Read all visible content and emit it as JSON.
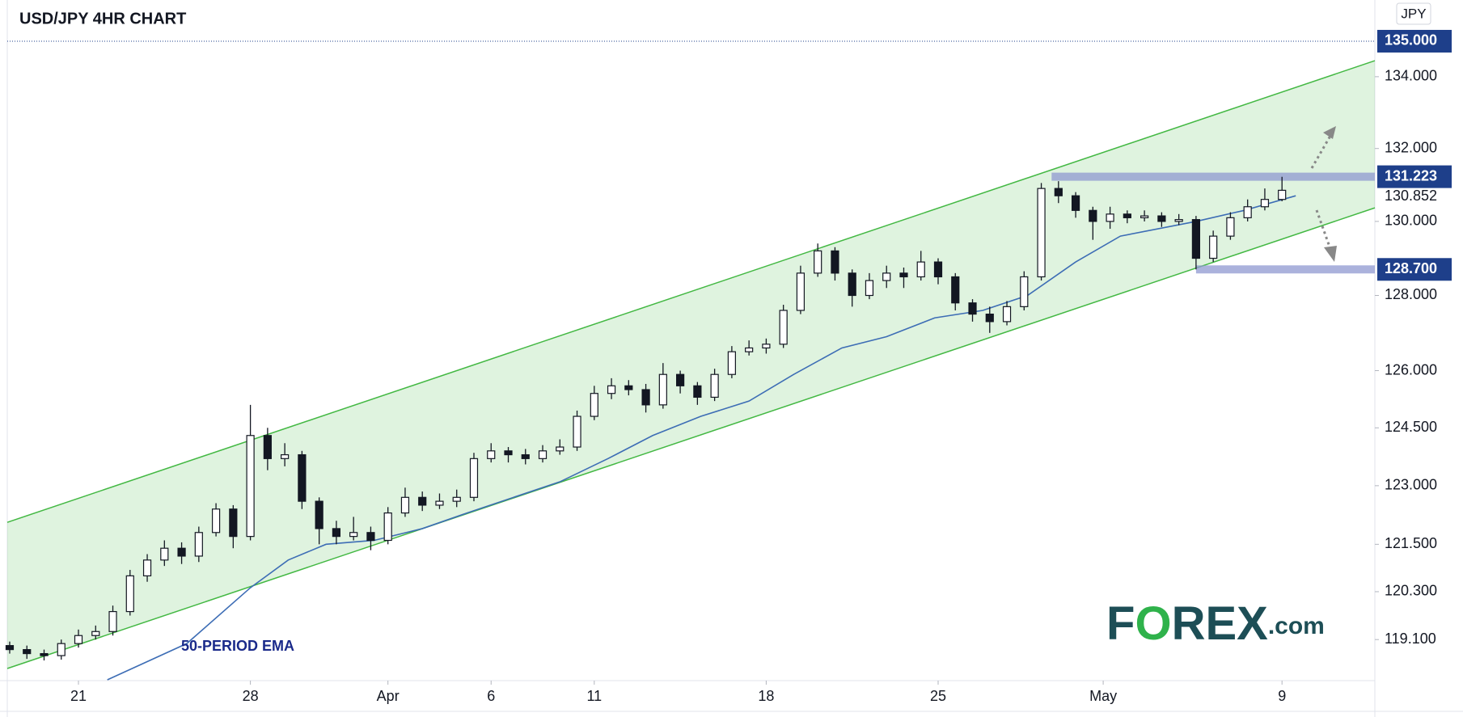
{
  "chart_data": {
    "type": "candlestick",
    "title": "USD/JPY 4HR CHART",
    "currency": "JPY",
    "x": [
      -2,
      -1.5,
      -1,
      -0.5,
      0,
      0.5,
      1,
      1.5,
      2,
      2.5,
      3,
      3.5,
      4,
      4.5,
      5,
      5.5,
      6,
      6.5,
      7,
      7.5,
      8,
      8.5,
      9,
      9.5,
      10,
      10.5,
      11,
      11.5,
      12,
      12.5,
      13,
      13.5,
      14,
      14.5,
      15,
      15.5,
      16,
      16.5,
      17,
      17.5,
      18,
      18.5,
      19,
      19.5,
      20,
      20.5,
      21,
      21.5,
      22,
      22.5,
      23,
      23.5,
      24,
      24.5,
      25,
      25.5,
      26,
      26.5,
      27,
      27.5,
      28,
      28.5,
      29,
      29.5,
      30,
      30.5,
      31,
      31.5,
      32,
      32.5,
      33,
      33.5,
      34,
      34.5,
      35
    ],
    "open": [
      118.95,
      118.85,
      118.75,
      118.7,
      119.0,
      119.2,
      119.3,
      119.8,
      120.7,
      121.1,
      121.4,
      121.2,
      121.8,
      122.4,
      121.7,
      124.3,
      123.7,
      123.8,
      122.6,
      121.9,
      121.7,
      121.8,
      121.6,
      122.3,
      122.7,
      122.5,
      122.6,
      122.7,
      123.7,
      123.9,
      123.8,
      123.7,
      123.9,
      124.0,
      124.8,
      125.4,
      125.6,
      125.5,
      125.1,
      125.9,
      125.6,
      125.3,
      125.9,
      126.5,
      126.6,
      126.7,
      127.6,
      128.6,
      129.2,
      128.6,
      128.0,
      128.4,
      128.6,
      128.5,
      128.9,
      128.5,
      127.8,
      127.5,
      127.3,
      127.7,
      128.5,
      130.9,
      130.7,
      130.3,
      130.0,
      130.2,
      130.1,
      130.15,
      130.0,
      130.05,
      129.0,
      129.6,
      130.1,
      130.4,
      130.6
    ],
    "high": [
      119.05,
      118.95,
      118.85,
      119.1,
      119.35,
      119.45,
      119.95,
      120.85,
      121.25,
      121.6,
      121.55,
      121.95,
      122.55,
      122.5,
      125.1,
      124.5,
      124.1,
      123.9,
      122.7,
      122.1,
      122.2,
      121.95,
      122.45,
      122.95,
      122.85,
      122.8,
      122.9,
      123.85,
      124.1,
      124.0,
      123.95,
      124.05,
      124.2,
      124.95,
      125.6,
      125.8,
      125.75,
      125.65,
      126.2,
      126.0,
      125.7,
      126.05,
      126.65,
      126.8,
      126.85,
      127.75,
      128.8,
      129.4,
      129.3,
      128.7,
      128.6,
      128.8,
      128.75,
      129.2,
      129.0,
      128.6,
      127.9,
      127.7,
      127.85,
      128.65,
      131.05,
      131.1,
      130.8,
      130.4,
      130.4,
      130.3,
      130.3,
      130.25,
      130.2,
      130.15,
      129.75,
      130.25,
      130.6,
      130.9,
      131.22
    ],
    "low": [
      118.75,
      118.62,
      118.58,
      118.6,
      118.9,
      119.1,
      119.2,
      119.7,
      120.55,
      120.95,
      121.0,
      121.05,
      121.7,
      121.4,
      121.6,
      123.4,
      123.5,
      122.4,
      121.5,
      121.5,
      121.6,
      121.35,
      121.5,
      122.2,
      122.35,
      122.4,
      122.45,
      122.6,
      123.6,
      123.6,
      123.55,
      123.6,
      123.8,
      123.9,
      124.7,
      125.25,
      125.35,
      124.9,
      125.0,
      125.4,
      125.1,
      125.2,
      125.8,
      126.4,
      126.45,
      126.6,
      127.5,
      128.5,
      128.4,
      127.7,
      127.9,
      128.2,
      128.2,
      128.4,
      128.3,
      127.6,
      127.3,
      127.0,
      127.2,
      127.6,
      128.4,
      130.5,
      130.1,
      129.5,
      129.8,
      129.95,
      130.0,
      129.85,
      129.9,
      128.7,
      128.9,
      129.5,
      130.0,
      130.3,
      130.55
    ],
    "close": [
      118.85,
      118.75,
      118.7,
      119.0,
      119.2,
      119.3,
      119.8,
      120.7,
      121.1,
      121.4,
      121.2,
      121.8,
      122.4,
      121.7,
      124.3,
      123.7,
      123.8,
      122.6,
      121.9,
      121.7,
      121.8,
      121.6,
      122.3,
      122.7,
      122.5,
      122.6,
      122.7,
      123.7,
      123.9,
      123.8,
      123.7,
      123.9,
      124.0,
      124.8,
      125.4,
      125.6,
      125.5,
      125.1,
      125.9,
      125.6,
      125.3,
      125.9,
      126.5,
      126.6,
      126.7,
      127.6,
      128.6,
      129.2,
      128.6,
      128.0,
      128.4,
      128.6,
      128.5,
      128.9,
      128.5,
      127.8,
      127.5,
      127.3,
      127.7,
      128.5,
      130.9,
      130.7,
      130.3,
      130.0,
      130.2,
      130.1,
      130.15,
      130.0,
      130.05,
      129.0,
      129.6,
      130.1,
      130.4,
      130.6,
      130.85
    ],
    "xlim": [
      -2.07,
      37.7
    ],
    "xticks": [
      {
        "value": 0,
        "label": "21"
      },
      {
        "value": 5,
        "label": "28"
      },
      {
        "value": 9,
        "label": "Apr"
      },
      {
        "value": 12,
        "label": "6"
      },
      {
        "value": 15,
        "label": "11"
      },
      {
        "value": 20,
        "label": "18"
      },
      {
        "value": 25,
        "label": "25"
      },
      {
        "value": 29.8,
        "label": "May"
      },
      {
        "value": 35,
        "label": "9"
      }
    ],
    "ylim": [
      118.08,
      136.17
    ],
    "log_scale": true,
    "yticks": [
      {
        "value": 119.1,
        "label": "119.100"
      },
      {
        "value": 120.3,
        "label": "120.300"
      },
      {
        "value": 121.5,
        "label": "121.500"
      },
      {
        "value": 123,
        "label": "123.000"
      },
      {
        "value": 124.5,
        "label": "124.500"
      },
      {
        "value": 126,
        "label": "126.000"
      },
      {
        "value": 128,
        "label": "128.000"
      },
      {
        "value": 130,
        "label": "130.000"
      },
      {
        "value": 132,
        "label": "132.000"
      },
      {
        "value": 134,
        "label": "134.000"
      }
    ],
    "ema": {
      "label": "50-PERIOD EMA",
      "color": "#3d6db5",
      "x": [
        0.84,
        3.15,
        5,
        6.1,
        7.2,
        8.6,
        10,
        11.3,
        14,
        15.4,
        16.7,
        18.1,
        19.5,
        20.8,
        22.2,
        23.5,
        24.9,
        26.3,
        27.6,
        29,
        30.3,
        32.5,
        33.9,
        35.4
      ],
      "values": [
        118.1,
        119.0,
        120.4,
        121.1,
        121.5,
        121.6,
        121.9,
        122.3,
        123.1,
        123.7,
        124.3,
        124.8,
        125.2,
        125.9,
        126.6,
        126.9,
        127.4,
        127.6,
        128.0,
        128.9,
        129.6,
        130.0,
        130.3,
        130.7
      ]
    },
    "channel": {
      "color": "#43b843",
      "x": [
        -2.07,
        37.7
      ],
      "upper": [
        122.06,
        134.45
      ],
      "lower": [
        118.38,
        130.37
      ]
    },
    "levels": [
      {
        "value": 135,
        "label": "135.000",
        "style": "dotted"
      },
      {
        "value": 131.223,
        "label": "131.223",
        "style": "band",
        "from": 28.3
      },
      {
        "value": 128.7,
        "label": "128.700",
        "style": "band",
        "from": 32.5
      }
    ],
    "last_price": {
      "value": 130.852,
      "label": "130.852"
    }
  },
  "logo": {
    "parts": [
      "F",
      "O",
      "REX",
      ".com"
    ]
  }
}
